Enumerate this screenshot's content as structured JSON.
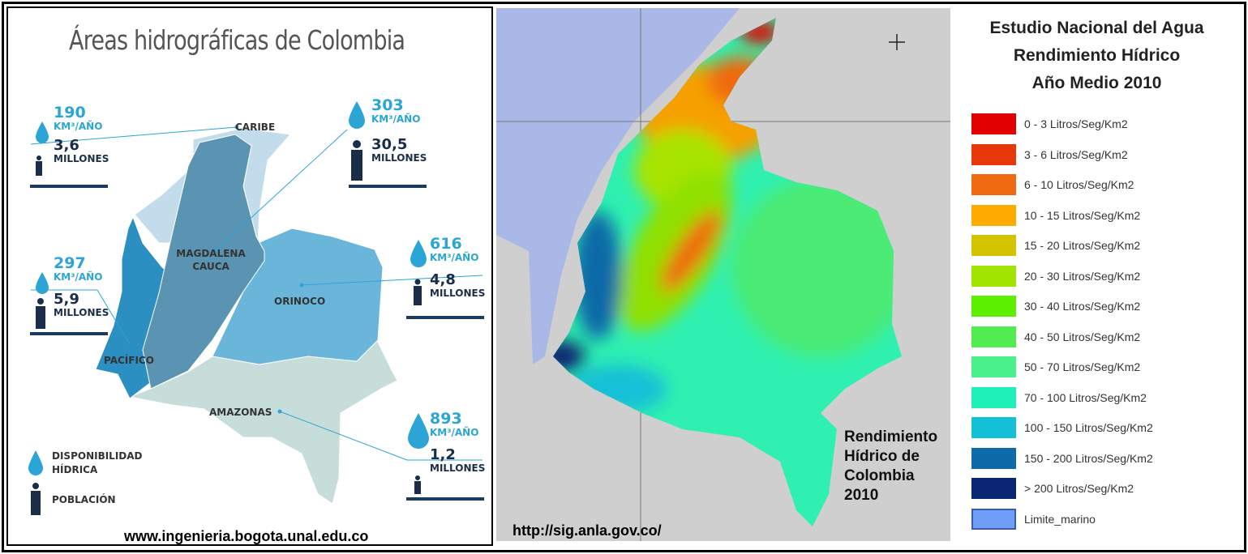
{
  "left_panel": {
    "title": "Áreas hidrográficas de Colombia",
    "source_url": "www.ingenieria.bogota.unal.edu.co",
    "unit_water": "KM³/AÑO",
    "unit_population": "MILLONES",
    "regions": [
      {
        "name": "CARIBE",
        "water": "190",
        "population": "3,6",
        "color": "#c3dcec"
      },
      {
        "name": "MAGDALENA CAUCA",
        "water": "303",
        "population": "30,5",
        "color": "#5b94b2"
      },
      {
        "name": "ORINOCO",
        "water": "616",
        "population": "4,8",
        "color": "#6ab6da"
      },
      {
        "name": "PACÍFICO",
        "water": "297",
        "population": "5,9",
        "color": "#2b8fc2"
      },
      {
        "name": "AMAZONAS",
        "water": "893",
        "population": "1,2",
        "color": "#c6ddd9"
      }
    ],
    "legend": {
      "water_label": "DISPONIBILIDAD HÍDRICA",
      "population_label": "POBLACIÓN"
    }
  },
  "right_panel": {
    "source_url": "http://sig.anla.gov.co/",
    "caption": [
      "Rendimiento",
      "Hídrico de",
      "Colombia",
      "2010"
    ],
    "legend_title": [
      "Estudio Nacional del Agua",
      "Rendimiento Hídrico",
      "Año Medio 2010"
    ],
    "legend": [
      {
        "label": "0 - 3 Litros/Seg/Km2",
        "color": "#e30000"
      },
      {
        "label": "3 - 6 Litros/Seg/Km2",
        "color": "#e8380a"
      },
      {
        "label": "6 - 10 Litros/Seg/Km2",
        "color": "#ef6a10"
      },
      {
        "label": "10 - 15 Litros/Seg/Km2",
        "color": "#fdab00"
      },
      {
        "label": "15 - 20  Litros/Seg/Km2",
        "color": "#d4c400"
      },
      {
        "label": "20 - 30 Litros/Seg/Km2",
        "color": "#a0e400"
      },
      {
        "label": "30 - 40 Litros/Seg/Km2",
        "color": "#5cf000"
      },
      {
        "label": "40 - 50 Litros/Seg/Km2",
        "color": "#50ec50"
      },
      {
        "label": "50 - 70 Litros/Seg/Km2",
        "color": "#4af08a"
      },
      {
        "label": "70 - 100 Litros/Seg/Km2",
        "color": "#1ef0b8"
      },
      {
        "label": "100 - 150 Litros/Seg/Km2",
        "color": "#14c0d6"
      },
      {
        "label": "150 - 200 Litros/Seg/Km2",
        "color": "#0e6aa8"
      },
      {
        "label": "> 200 Litros/Seg/Km2",
        "color": "#0a2672"
      },
      {
        "label": "Limite_marino",
        "color": "#6e9ef8"
      }
    ]
  }
}
